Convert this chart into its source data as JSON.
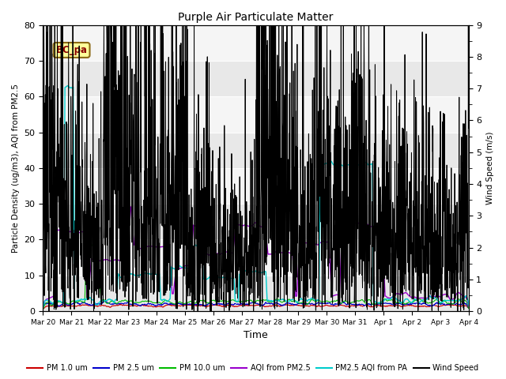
{
  "title": "Purple Air Particulate Matter",
  "xlabel": "Time",
  "ylabel_left": "Particle Density (ug/m3), AQI from PM2.5",
  "ylabel_right": "Wind Speed (m/s)",
  "ylim_left": [
    0,
    80
  ],
  "ylim_right": [
    0.0,
    9.0
  ],
  "yticks_left": [
    0,
    10,
    20,
    30,
    40,
    50,
    60,
    70,
    80
  ],
  "yticks_right": [
    0.0,
    1.0,
    2.0,
    3.0,
    4.0,
    5.0,
    6.0,
    7.0,
    8.0,
    9.0
  ],
  "station_label": "BC_pa",
  "colors": {
    "pm1": "#cc0000",
    "pm25": "#0000cc",
    "pm10": "#00bb00",
    "aqi_pm25": "#9900cc",
    "aqi_pa": "#00cccc",
    "wind": "#000000"
  },
  "legend_entries": [
    "PM 1.0 um",
    "PM 2.5 um",
    "PM 10.0 um",
    "AQI from PM2.5",
    "PM2.5 AQI from PA",
    "Wind Speed"
  ],
  "tick_labels": [
    "Mar 20",
    "Mar 21",
    "Mar 22",
    "Mar 23",
    "Mar 24",
    "Mar 25",
    "Mar 26",
    "Mar 27",
    "Mar 28",
    "Mar 29",
    "Mar 30",
    "Mar 31",
    "Apr 1",
    "Apr 2",
    "Apr 3",
    "Apr 4"
  ],
  "bg_bands": [
    [
      0,
      10,
      "#e8e8e8"
    ],
    [
      10,
      20,
      "#f5f5f5"
    ],
    [
      20,
      30,
      "#e8e8e8"
    ],
    [
      30,
      40,
      "#f5f5f5"
    ],
    [
      40,
      50,
      "#e8e8e8"
    ],
    [
      50,
      60,
      "#f5f5f5"
    ],
    [
      60,
      70,
      "#e8e8e8"
    ],
    [
      70,
      80,
      "#f5f5f5"
    ]
  ]
}
